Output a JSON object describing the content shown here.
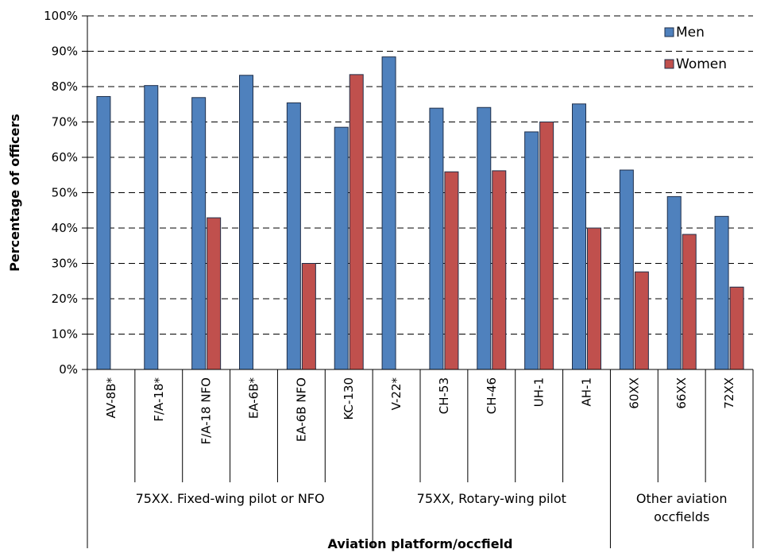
{
  "chart_data": {
    "type": "bar",
    "title": "",
    "xlabel": "Aviation platform/occfield",
    "ylabel": "Percentage of officers",
    "ylim": [
      0,
      100
    ],
    "yticks": [
      "0%",
      "10%",
      "20%",
      "30%",
      "40%",
      "50%",
      "60%",
      "70%",
      "80%",
      "90%",
      "100%"
    ],
    "grid": "horizontal dashed",
    "legend_position": "top-right",
    "categories": [
      "AV-8B*",
      "F/A-18*",
      "F/A-18 NFO",
      "EA-6B*",
      "EA-6B NFO",
      "KC-130",
      "V-22*",
      "CH-53",
      "CH-46",
      "UH-1",
      "AH-1",
      "60XX",
      "66XX",
      "72XX"
    ],
    "groups": [
      {
        "label": "75XX. Fixed-wing pilot or NFO",
        "start": 0,
        "end": 5
      },
      {
        "label": "75XX, Rotary-wing pilot",
        "start": 6,
        "end": 10
      },
      {
        "label": "Other aviation occfields",
        "start": 11,
        "end": 13
      }
    ],
    "series": [
      {
        "name": "Men",
        "color": "#4f81bd",
        "values": [
          77.2,
          80.3,
          76.9,
          83.2,
          75.4,
          68.5,
          88.4,
          73.9,
          74.1,
          67.2,
          75.1,
          56.4,
          48.9,
          43.3
        ]
      },
      {
        "name": "Women",
        "color": "#c0504d",
        "values": [
          null,
          null,
          42.9,
          null,
          30.0,
          83.4,
          null,
          55.9,
          56.2,
          70.0,
          40.0,
          27.6,
          38.2,
          23.3
        ]
      }
    ]
  }
}
